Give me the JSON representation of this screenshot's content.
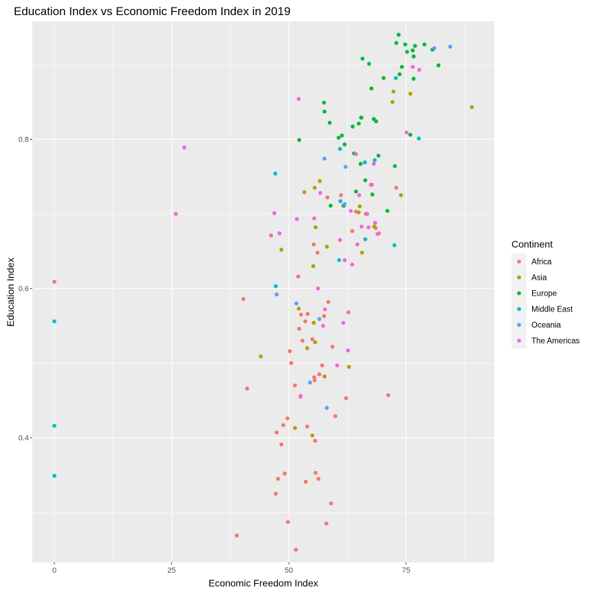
{
  "chart_data": {
    "type": "scatter",
    "title": "Education Index vs Economic Freedom Index in 2019",
    "xlabel": "Economic Freedom Index",
    "ylabel": "Education Index",
    "xlim": [
      -4.7,
      93.8
    ],
    "ylim": [
      0.233,
      0.958
    ],
    "xticks": [
      0,
      25,
      50,
      75
    ],
    "xtick_labels": [
      "0",
      "25",
      "50",
      "75"
    ],
    "yticks": [
      0.4,
      0.6,
      0.8
    ],
    "ytick_labels": [
      "0.4",
      "0.6",
      "0.8"
    ],
    "grid": true,
    "legend": {
      "title": "Continent",
      "position": "right"
    },
    "series": [
      {
        "name": "Africa",
        "color": "#F8766D",
        "points": [
          [
            0,
            0.609
          ],
          [
            40.3,
            0.586
          ],
          [
            41.1,
            0.466
          ],
          [
            38.9,
            0.269
          ],
          [
            46.2,
            0.671
          ],
          [
            47.2,
            0.325
          ],
          [
            47.4,
            0.407
          ],
          [
            47.7,
            0.345
          ],
          [
            48.4,
            0.391
          ],
          [
            48.8,
            0.417
          ],
          [
            49.1,
            0.352
          ],
          [
            49.7,
            0.426
          ],
          [
            49.8,
            0.287
          ],
          [
            50.2,
            0.516
          ],
          [
            50.5,
            0.5
          ],
          [
            51.3,
            0.47
          ],
          [
            51.5,
            0.25
          ],
          [
            52.0,
            0.616
          ],
          [
            52.2,
            0.546
          ],
          [
            52.5,
            0.455
          ],
          [
            52.6,
            0.565
          ],
          [
            52.9,
            0.53
          ],
          [
            53.5,
            0.556
          ],
          [
            53.6,
            0.341
          ],
          [
            53.9,
            0.415
          ],
          [
            54.0,
            0.566
          ],
          [
            55.0,
            0.532
          ],
          [
            55.3,
            0.659
          ],
          [
            55.4,
            0.481
          ],
          [
            55.5,
            0.477
          ],
          [
            55.6,
            0.396
          ],
          [
            55.7,
            0.353
          ],
          [
            56.1,
            0.648
          ],
          [
            56.3,
            0.345
          ],
          [
            56.5,
            0.485
          ],
          [
            57.1,
            0.497
          ],
          [
            57.5,
            0.563
          ],
          [
            58.0,
            0.285
          ],
          [
            58.2,
            0.722
          ],
          [
            58.4,
            0.582
          ],
          [
            59.0,
            0.312
          ],
          [
            59.3,
            0.522
          ],
          [
            59.9,
            0.429
          ],
          [
            61.1,
            0.725
          ],
          [
            61.6,
            0.711
          ],
          [
            62.2,
            0.453
          ],
          [
            62.7,
            0.568
          ],
          [
            63.5,
            0.677
          ],
          [
            64.3,
            0.703
          ],
          [
            66.4,
            0.7
          ],
          [
            67.5,
            0.739
          ],
          [
            68.5,
            0.681
          ],
          [
            69.2,
            0.674
          ],
          [
            71.2,
            0.457
          ],
          [
            72.9,
            0.735
          ]
        ]
      },
      {
        "name": "Asia",
        "color": "#B79F00",
        "points": [
          [
            44.0,
            0.509
          ],
          [
            48.4,
            0.652
          ],
          [
            51.3,
            0.413
          ],
          [
            52.1,
            0.573
          ],
          [
            53.3,
            0.729
          ],
          [
            53.9,
            0.52
          ],
          [
            55.0,
            0.403
          ],
          [
            55.2,
            0.63
          ],
          [
            55.3,
            0.554
          ],
          [
            55.5,
            0.735
          ],
          [
            55.6,
            0.528
          ],
          [
            55.7,
            0.682
          ],
          [
            56.6,
            0.744
          ],
          [
            57.6,
            0.482
          ],
          [
            58.1,
            0.656
          ],
          [
            62.8,
            0.495
          ],
          [
            64.9,
            0.702
          ],
          [
            65.1,
            0.71
          ],
          [
            65.5,
            0.829
          ],
          [
            65.6,
            0.648
          ],
          [
            68.2,
            0.683
          ],
          [
            72.1,
            0.85
          ],
          [
            72.3,
            0.864
          ],
          [
            73.9,
            0.725
          ],
          [
            75.9,
            0.861
          ],
          [
            89.0,
            0.843
          ]
        ]
      },
      {
        "name": "Europe",
        "color": "#00BA38",
        "points": [
          [
            52.2,
            0.799
          ],
          [
            57.5,
            0.849
          ],
          [
            57.6,
            0.837
          ],
          [
            58.7,
            0.822
          ],
          [
            58.9,
            0.711
          ],
          [
            60.6,
            0.802
          ],
          [
            61.3,
            0.805
          ],
          [
            61.7,
            0.711
          ],
          [
            61.9,
            0.793
          ],
          [
            63.6,
            0.817
          ],
          [
            63.9,
            0.781
          ],
          [
            64.3,
            0.73
          ],
          [
            64.9,
            0.821
          ],
          [
            65.3,
            0.767
          ],
          [
            65.4,
            0.829
          ],
          [
            65.7,
            0.908
          ],
          [
            66.3,
            0.745
          ],
          [
            67.1,
            0.901
          ],
          [
            67.6,
            0.868
          ],
          [
            67.8,
            0.726
          ],
          [
            68.1,
            0.827
          ],
          [
            68.6,
            0.824
          ],
          [
            69.1,
            0.778
          ],
          [
            70.2,
            0.882
          ],
          [
            71.0,
            0.704
          ],
          [
            72.6,
            0.764
          ],
          [
            72.9,
            0.929
          ],
          [
            73.4,
            0.94
          ],
          [
            73.6,
            0.887
          ],
          [
            74.1,
            0.897
          ],
          [
            74.8,
            0.927
          ],
          [
            75.2,
            0.917
          ],
          [
            75.9,
            0.806
          ],
          [
            76.4,
            0.919
          ],
          [
            76.6,
            0.911
          ],
          [
            76.6,
            0.881
          ],
          [
            76.9,
            0.925
          ],
          [
            78.9,
            0.927
          ],
          [
            80.6,
            0.92
          ],
          [
            81.9,
            0.899
          ]
        ]
      },
      {
        "name": "Middle East",
        "color": "#00BFC4",
        "points": [
          [
            0,
            0.556
          ],
          [
            0,
            0.416
          ],
          [
            0,
            0.349
          ],
          [
            47.1,
            0.754
          ],
          [
            47.2,
            0.603
          ],
          [
            60.7,
            0.638
          ],
          [
            60.9,
            0.787
          ],
          [
            61.0,
            0.717
          ],
          [
            66.2,
            0.769
          ],
          [
            66.3,
            0.666
          ],
          [
            68.3,
            0.772
          ],
          [
            72.5,
            0.658
          ],
          [
            72.8,
            0.882
          ],
          [
            77.7,
            0.801
          ]
        ]
      },
      {
        "name": "Oceania",
        "color": "#619CFF",
        "points": [
          [
            47.4,
            0.592
          ],
          [
            51.6,
            0.58
          ],
          [
            54.5,
            0.474
          ],
          [
            56.5,
            0.559
          ],
          [
            57.6,
            0.774
          ],
          [
            58.1,
            0.44
          ],
          [
            61.9,
            0.713
          ],
          [
            62.1,
            0.763
          ],
          [
            81.0,
            0.922
          ],
          [
            84.4,
            0.924
          ]
        ]
      },
      {
        "name": "The Americas",
        "color": "#F564E3",
        "points": [
          [
            25.9,
            0.7
          ],
          [
            27.7,
            0.789
          ],
          [
            46.9,
            0.701
          ],
          [
            48.0,
            0.674
          ],
          [
            51.7,
            0.693
          ],
          [
            52.1,
            0.854
          ],
          [
            52.5,
            0.456
          ],
          [
            55.4,
            0.694
          ],
          [
            56.2,
            0.6
          ],
          [
            56.7,
            0.728
          ],
          [
            57.3,
            0.55
          ],
          [
            57.7,
            0.572
          ],
          [
            60.3,
            0.497
          ],
          [
            60.9,
            0.665
          ],
          [
            61.6,
            0.554
          ],
          [
            61.9,
            0.638
          ],
          [
            62.6,
            0.517
          ],
          [
            63.2,
            0.704
          ],
          [
            63.5,
            0.632
          ],
          [
            64.3,
            0.78
          ],
          [
            64.6,
            0.659
          ],
          [
            65.0,
            0.725
          ],
          [
            65.5,
            0.683
          ],
          [
            66.7,
            0.7
          ],
          [
            67.0,
            0.682
          ],
          [
            67.7,
            0.739
          ],
          [
            68.1,
            0.767
          ],
          [
            68.4,
            0.688
          ],
          [
            68.9,
            0.673
          ],
          [
            75.1,
            0.809
          ],
          [
            76.4,
            0.897
          ],
          [
            77.8,
            0.893
          ]
        ]
      }
    ]
  }
}
